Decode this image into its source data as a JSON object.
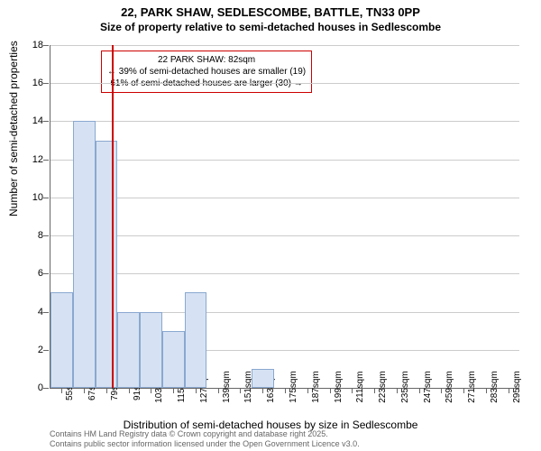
{
  "chart": {
    "type": "histogram",
    "title": "22, PARK SHAW, SEDLESCOMBE, BATTLE, TN33 0PP",
    "subtitle": "Size of property relative to semi-detached houses in Sedlescombe",
    "ylabel": "Number of semi-detached properties",
    "xlabel": "Distribution of semi-detached houses by size in Sedlescombe",
    "ylim": [
      0,
      18
    ],
    "ytick_step": 2,
    "yticks": [
      0,
      2,
      4,
      6,
      8,
      10,
      12,
      14,
      16,
      18
    ],
    "xticks": [
      "55sqm",
      "67sqm",
      "79sqm",
      "91sqm",
      "103sqm",
      "115sqm",
      "127sqm",
      "139sqm",
      "151sqm",
      "163sqm",
      "175sqm",
      "187sqm",
      "199sqm",
      "211sqm",
      "223sqm",
      "235sqm",
      "247sqm",
      "259sqm",
      "271sqm",
      "283sqm",
      "295sqm"
    ],
    "xtick_positions": [
      55,
      67,
      79,
      91,
      103,
      115,
      127,
      139,
      151,
      163,
      175,
      187,
      199,
      211,
      223,
      235,
      247,
      259,
      271,
      283,
      295
    ],
    "xlim": [
      49,
      301
    ],
    "bars": [
      {
        "x_start": 49,
        "x_end": 61,
        "value": 5
      },
      {
        "x_start": 61,
        "x_end": 73,
        "value": 14
      },
      {
        "x_start": 73,
        "x_end": 85,
        "value": 13
      },
      {
        "x_start": 85,
        "x_end": 97,
        "value": 4
      },
      {
        "x_start": 97,
        "x_end": 109,
        "value": 4
      },
      {
        "x_start": 109,
        "x_end": 121,
        "value": 3
      },
      {
        "x_start": 121,
        "x_end": 133,
        "value": 5
      },
      {
        "x_start": 157,
        "x_end": 169,
        "value": 1
      }
    ],
    "marker": {
      "x": 82,
      "color": "#cc0000"
    },
    "annotation": {
      "line1": "22 PARK SHAW: 82sqm",
      "line2": "← 39% of semi-detached houses are smaller (19)",
      "line3": "61% of semi-detached houses are larger (30) →",
      "border_color": "#cc0000"
    },
    "bar_color": "#d6e2f3",
    "bar_border_color": "#8aa8d0",
    "grid_color": "#cccccc",
    "background_color": "#ffffff"
  },
  "footer": {
    "line1": "Contains HM Land Registry data © Crown copyright and database right 2025.",
    "line2": "Contains public sector information licensed under the Open Government Licence v3.0."
  }
}
